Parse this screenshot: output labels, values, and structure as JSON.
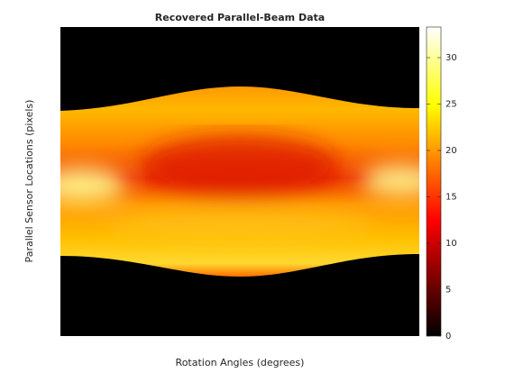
{
  "chart_data": {
    "type": "image",
    "title": "Recovered Parallel-Beam Data",
    "xlabel": "Rotation Angles (degrees)",
    "ylabel": "Parallel Sensor Locations (pixels)",
    "colormap": "hot",
    "clim": [
      0,
      33.3
    ],
    "cticks": [
      0,
      5,
      10,
      15,
      20,
      25,
      30
    ]
  }
}
